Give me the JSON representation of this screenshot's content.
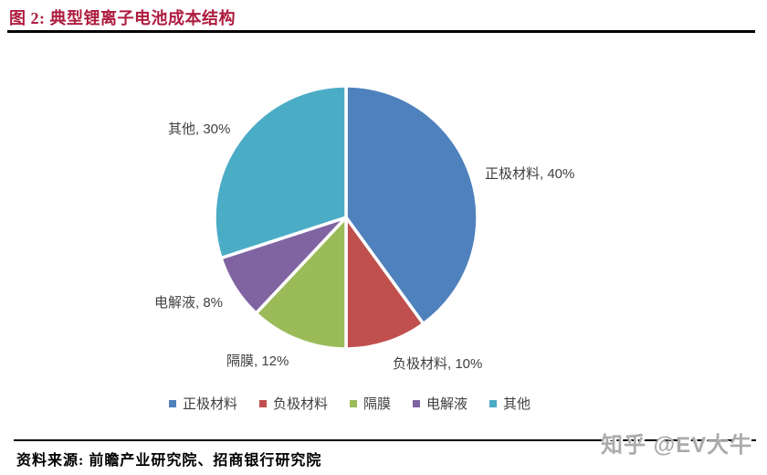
{
  "figure": {
    "title": "图 2: 典型锂离子电池成本结构",
    "title_color": "#AE1C3F"
  },
  "chart_data": {
    "type": "pie",
    "title": "典型锂离子电池成本结构",
    "unit": "%",
    "start_angle_deg": -90,
    "direction": "clockwise",
    "slices": [
      {
        "name": "正极材料",
        "value": 40,
        "label": "正极材料, 40%",
        "color": "#4F81BD"
      },
      {
        "name": "负极材料",
        "value": 10,
        "label": "负极材料, 10%",
        "color": "#C0504D"
      },
      {
        "name": "隔膜",
        "value": 12,
        "label": "隔膜, 12%",
        "color": "#9BBB59"
      },
      {
        "name": "电解液",
        "value": 8,
        "label": "电解液, 8%",
        "color": "#8064A2"
      },
      {
        "name": "其他",
        "value": 30,
        "label": "其他, 30%",
        "color": "#4BACC6"
      }
    ],
    "legend": [
      "正极材料",
      "负极材料",
      "隔膜",
      "电解液",
      "其他"
    ],
    "legend_position": "bottom",
    "label_color": "#3F3F3F",
    "slice_separator_color": "#FFFFFF"
  },
  "footer": {
    "source": "资料来源: 前瞻产业研究院、招商银行研究院"
  },
  "watermark": {
    "text": "知乎 @EV大牛",
    "color": "#ABABAB"
  }
}
